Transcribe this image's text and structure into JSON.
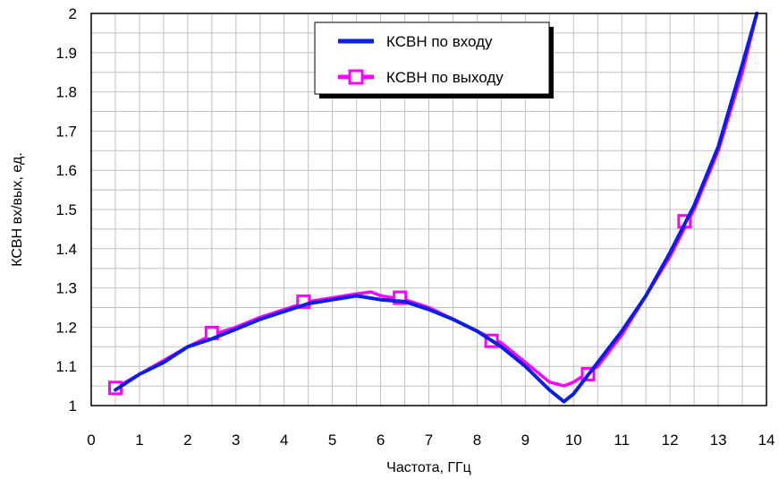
{
  "chart_data": {
    "type": "line",
    "title": "",
    "xlabel": "Частота, ГГц",
    "ylabel": "КСВН вх/вых, ед.",
    "xlim": [
      0,
      14
    ],
    "ylim": [
      1,
      2
    ],
    "x_ticks": [
      "0",
      "1",
      "2",
      "3",
      "4",
      "5",
      "6",
      "7",
      "8",
      "9",
      "10",
      "11",
      "12",
      "13",
      "14"
    ],
    "y_ticks": [
      "1",
      "1.1",
      "1.2",
      "1.3",
      "1.4",
      "1.5",
      "1.6",
      "1.7",
      "1.8",
      "1.9",
      "2"
    ],
    "grid": true,
    "legend_position": "top-center",
    "series": [
      {
        "name": "КСВН по входу",
        "color": "#0a1ee6",
        "marker": "none",
        "x": [
          0.5,
          1.0,
          1.5,
          2.0,
          2.5,
          3.0,
          3.5,
          4.0,
          4.5,
          5.0,
          5.5,
          6.0,
          6.5,
          7.0,
          7.5,
          8.0,
          8.5,
          9.0,
          9.5,
          9.8,
          10.0,
          10.5,
          11.0,
          11.5,
          12.0,
          12.5,
          13.0,
          13.5,
          13.8
        ],
        "y": [
          1.04,
          1.08,
          1.11,
          1.15,
          1.17,
          1.195,
          1.22,
          1.24,
          1.26,
          1.27,
          1.28,
          1.27,
          1.265,
          1.245,
          1.22,
          1.19,
          1.15,
          1.1,
          1.04,
          1.01,
          1.03,
          1.11,
          1.19,
          1.28,
          1.39,
          1.51,
          1.66,
          1.87,
          2.0
        ]
      },
      {
        "name": "КСВН по выходу",
        "color": "#ff00ff",
        "marker": "square",
        "x": [
          0.5,
          1.0,
          1.5,
          2.0,
          2.5,
          3.0,
          3.5,
          4.0,
          4.5,
          5.0,
          5.5,
          5.8,
          6.0,
          6.5,
          7.0,
          7.5,
          8.0,
          8.5,
          9.0,
          9.5,
          9.8,
          10.0,
          10.5,
          11.0,
          11.5,
          12.0,
          12.5,
          13.0,
          13.5,
          13.8
        ],
        "y": [
          1.045,
          1.08,
          1.115,
          1.15,
          1.18,
          1.2,
          1.225,
          1.245,
          1.265,
          1.275,
          1.285,
          1.29,
          1.28,
          1.27,
          1.25,
          1.22,
          1.19,
          1.16,
          1.11,
          1.06,
          1.05,
          1.06,
          1.1,
          1.18,
          1.28,
          1.38,
          1.5,
          1.65,
          1.85,
          2.0
        ],
        "marker_x": [
          0.5,
          2.5,
          4.4,
          6.4,
          8.3,
          10.3,
          12.3
        ],
        "marker_y": [
          1.045,
          1.185,
          1.265,
          1.275,
          1.165,
          1.08,
          1.47
        ]
      }
    ]
  }
}
